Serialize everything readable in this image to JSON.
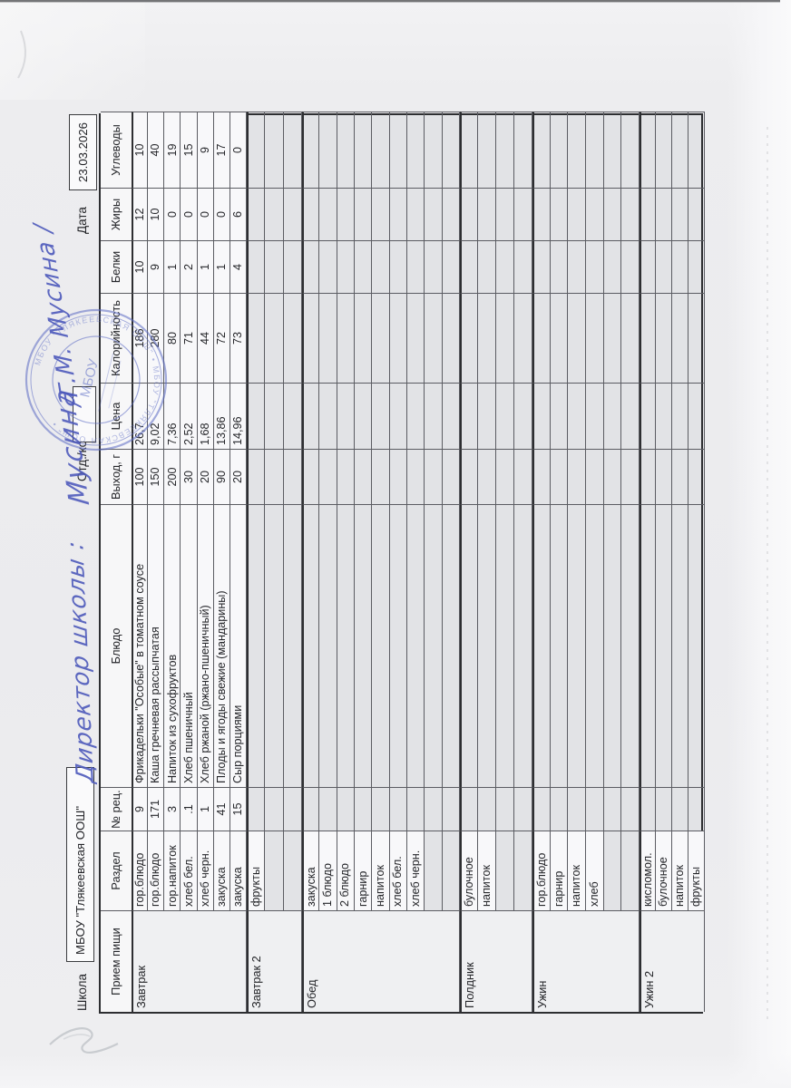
{
  "colors": {
    "ink": "#4d59bb",
    "stamp": "#5b6bc4",
    "paper": "#ededf0",
    "table_text": "#25262a"
  },
  "topline": {
    "school_label": "Школа",
    "school_name": "МБОУ \"Тлякеевская ООШ\"",
    "dept_label": "Отд./корп",
    "dept_value": "",
    "date_label": "Дата",
    "date_value": "23.03.2026"
  },
  "handwriting": {
    "part1": "Директор школы :",
    "part2": "Мусина",
    "part3": "/Г.М. Мусина /"
  },
  "stamp": {
    "ring_text": "МБОУ \"ТЛЯКЕЕВСКАЯ ООШ\"  •  МБОУ \"ТЛЯКЕЕВСКАЯ ООШ\"  •",
    "center_text": "МБОУ"
  },
  "table": {
    "headers": [
      "Прием пищи",
      "Раздел",
      "№ рец.",
      "Блюдо",
      "Выход, г",
      "Цена",
      "Калорийность",
      "Белки",
      "Жиры",
      "Углеводы"
    ],
    "sections": [
      {
        "meal": "Завтрак",
        "rows": [
          {
            "razdel": "гор.блюдо",
            "num": "9",
            "dish": "Фрикадельки \"Особые\" в томатном соусе",
            "out": "100",
            "price": "26,7",
            "kcal": "186",
            "protein": "10",
            "fat": "12",
            "carbs": "10"
          },
          {
            "razdel": "гор.блюдо",
            "num": "171",
            "dish": "Каша гречневая рассыпчатая",
            "out": "150",
            "price": "9,02",
            "kcal": "280",
            "protein": "9",
            "fat": "10",
            "carbs": "40"
          },
          {
            "razdel": "гор.напиток",
            "num": "3",
            "dish": "Напиток из  сухофруктов",
            "out": "200",
            "price": "7,36",
            "kcal": "80",
            "protein": "1",
            "fat": "0",
            "carbs": "19"
          },
          {
            "razdel": "хлеб бел.",
            "num": ".1",
            "dish": "Хлеб пшеничный",
            "out": "30",
            "price": "2,52",
            "kcal": "71",
            "protein": "2",
            "fat": "0",
            "carbs": "15"
          },
          {
            "razdel": "хлеб черн.",
            "num": "1",
            "dish": "Хлеб ржаной (ржано-пшеничный)",
            "out": "20",
            "price": "1,68",
            "kcal": "44",
            "protein": "1",
            "fat": "0",
            "carbs": "9"
          },
          {
            "razdel": "закуска",
            "num": "41",
            "dish": "Плоды и ягоды свежие (мандарины)",
            "out": "90",
            "price": "13,86",
            "kcal": "72",
            "protein": "1",
            "fat": "0",
            "carbs": "17"
          },
          {
            "razdel": "закуска",
            "num": "15",
            "dish": "Сыр порциями",
            "out": "20",
            "price": "14,96",
            "kcal": "73",
            "protein": "4",
            "fat": "6",
            "carbs": "0"
          }
        ]
      },
      {
        "meal": "Завтрак 2",
        "rows": [
          {
            "razdel": "фрукты"
          },
          {},
          {}
        ]
      },
      {
        "meal": "Обед",
        "rows": [
          {
            "razdel": "закуска"
          },
          {
            "razdel": "1 блюдо"
          },
          {
            "razdel": "2 блюдо"
          },
          {
            "razdel": "гарнир"
          },
          {
            "razdel": "напиток"
          },
          {
            "razdel": "хлеб бел."
          },
          {
            "razdel": "хлеб черн."
          },
          {},
          {}
        ]
      },
      {
        "meal": "Полдник",
        "rows": [
          {
            "razdel": "булочное"
          },
          {
            "razdel": "напиток"
          },
          {},
          {}
        ]
      },
      {
        "meal": "Ужин",
        "rows": [
          {
            "razdel": "гор.блюдо"
          },
          {
            "razdel": "гарнир"
          },
          {
            "razdel": "напиток"
          },
          {
            "razdel": "хлеб"
          },
          {},
          {}
        ]
      },
      {
        "meal": "Ужин 2",
        "rows": [
          {
            "razdel": "кисломол."
          },
          {
            "razdel": "булочное"
          },
          {
            "razdel": "напиток"
          },
          {
            "razdel": "фрукты"
          }
        ]
      }
    ]
  }
}
